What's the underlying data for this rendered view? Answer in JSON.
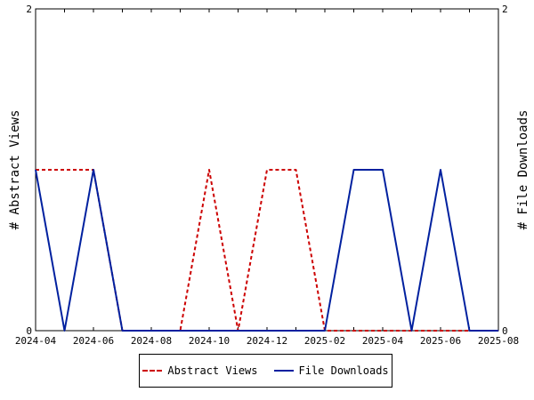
{
  "chart_data": {
    "type": "line",
    "x": [
      "2024-04",
      "2024-05",
      "2024-06",
      "2024-07",
      "2024-08",
      "2024-09",
      "2024-10",
      "2024-11",
      "2024-12",
      "2025-01",
      "2025-02",
      "2025-03",
      "2025-04",
      "2025-05",
      "2025-06",
      "2025-07",
      "2025-08"
    ],
    "x_ticks": [
      "2024-04",
      "2024-06",
      "2024-08",
      "2024-10",
      "2024-12",
      "2025-02",
      "2025-04",
      "2025-06",
      "2025-08"
    ],
    "series": [
      {
        "name": "Abstract Views",
        "axis": "left",
        "color": "#cc0000",
        "dash": "dashed",
        "values": [
          1,
          1,
          1,
          0,
          0,
          0,
          1,
          0,
          1,
          1,
          0,
          0,
          0,
          0,
          0,
          0,
          0
        ]
      },
      {
        "name": "File Downloads",
        "axis": "right",
        "color": "#00209f",
        "dash": "solid",
        "values": [
          1,
          0,
          1,
          0,
          0,
          0,
          0,
          0,
          0,
          0,
          0,
          1,
          1,
          0,
          1,
          0,
          0
        ]
      }
    ],
    "ylabel_left": "# Abstract Views",
    "ylabel_right": "# File Downloads",
    "ylim": [
      0,
      2
    ],
    "y_ticks": [
      "0",
      "2"
    ],
    "grid": false,
    "legend_position": "bottom"
  }
}
